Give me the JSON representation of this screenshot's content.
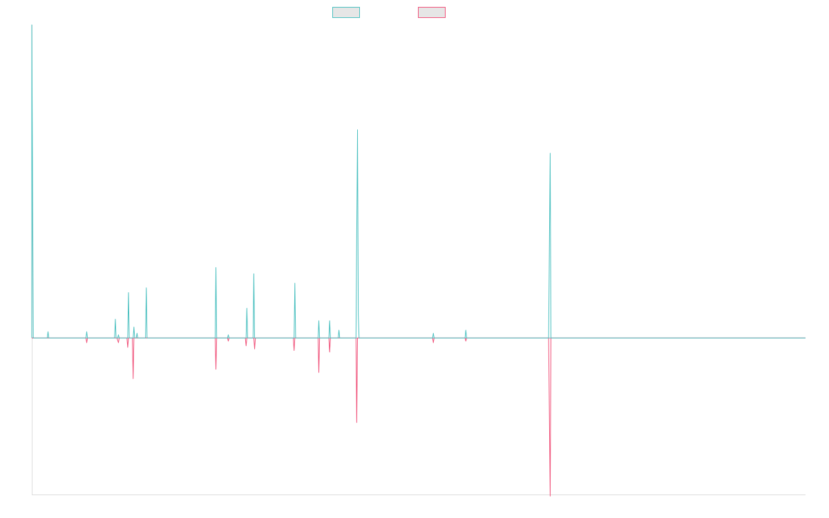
{
  "chart_data": {
    "type": "line",
    "title": "",
    "xlabel": "",
    "ylabel": "",
    "xlim": [
      0,
      1000
    ],
    "ylim": [
      -100,
      200
    ],
    "grid": false,
    "legend_position": "top-center",
    "series": [
      {
        "name": "",
        "color": "#4bc0c0",
        "points": [
          [
            0,
            0
          ],
          [
            0,
            200
          ],
          [
            2,
            0
          ],
          [
            20,
            0
          ],
          [
            21,
            4
          ],
          [
            22,
            0
          ],
          [
            70,
            0
          ],
          [
            71,
            4
          ],
          [
            72,
            0
          ],
          [
            107,
            0
          ],
          [
            108,
            12
          ],
          [
            109,
            0
          ],
          [
            111,
            0
          ],
          [
            112,
            2
          ],
          [
            113,
            0
          ],
          [
            124,
            0
          ],
          [
            125,
            29
          ],
          [
            126,
            0
          ],
          [
            131,
            0
          ],
          [
            132,
            7
          ],
          [
            133,
            0
          ],
          [
            135,
            0
          ],
          [
            136,
            3
          ],
          [
            137,
            0
          ],
          [
            147,
            0
          ],
          [
            148,
            32
          ],
          [
            149,
            0
          ],
          [
            237,
            0
          ],
          [
            238,
            45
          ],
          [
            239,
            0
          ],
          [
            253,
            0
          ],
          [
            254,
            2
          ],
          [
            255,
            0
          ],
          [
            277,
            0
          ],
          [
            278,
            19
          ],
          [
            279,
            0
          ],
          [
            286,
            0
          ],
          [
            287,
            41
          ],
          [
            288,
            0
          ],
          [
            339,
            0
          ],
          [
            340,
            35
          ],
          [
            341,
            0
          ],
          [
            370,
            0
          ],
          [
            371,
            11
          ],
          [
            372,
            0
          ],
          [
            375,
            0
          ],
          [
            376,
            0
          ],
          [
            377,
            0
          ],
          [
            384,
            0
          ],
          [
            385,
            11
          ],
          [
            386,
            0
          ],
          [
            396,
            0
          ],
          [
            397,
            5
          ],
          [
            398,
            0
          ],
          [
            419,
            0
          ],
          [
            421,
            133
          ],
          [
            422,
            15
          ],
          [
            423,
            0
          ],
          [
            518,
            0
          ],
          [
            519,
            3
          ],
          [
            520,
            0
          ],
          [
            560,
            0
          ],
          [
            561,
            5
          ],
          [
            562,
            0
          ],
          [
            668,
            0
          ],
          [
            670,
            118
          ],
          [
            671,
            0
          ],
          [
            1000,
            0
          ]
        ]
      },
      {
        "name": "",
        "color": "#f0527a",
        "points": [
          [
            0,
            0
          ],
          [
            70,
            0
          ],
          [
            71,
            -3
          ],
          [
            72,
            0
          ],
          [
            110,
            0
          ],
          [
            112,
            -3
          ],
          [
            113,
            0
          ],
          [
            123,
            0
          ],
          [
            124,
            -6
          ],
          [
            125,
            0
          ],
          [
            130,
            0
          ],
          [
            131,
            -26
          ],
          [
            132,
            0
          ],
          [
            156,
            0
          ],
          [
            237,
            0
          ],
          [
            238,
            -20
          ],
          [
            239,
            0
          ],
          [
            253,
            0
          ],
          [
            254,
            -2
          ],
          [
            255,
            0
          ],
          [
            276,
            0
          ],
          [
            277,
            -5
          ],
          [
            278,
            0
          ],
          [
            287,
            0
          ],
          [
            288,
            -7
          ],
          [
            289,
            0
          ],
          [
            338,
            0
          ],
          [
            339,
            -8
          ],
          [
            340,
            0
          ],
          [
            370,
            0
          ],
          [
            371,
            -22
          ],
          [
            372,
            0
          ],
          [
            384,
            0
          ],
          [
            385,
            -9
          ],
          [
            386,
            0
          ],
          [
            419,
            0
          ],
          [
            420,
            -54
          ],
          [
            421,
            0
          ],
          [
            518,
            0
          ],
          [
            519,
            -3
          ],
          [
            520,
            0
          ],
          [
            560,
            0
          ],
          [
            561,
            -2
          ],
          [
            562,
            0
          ],
          [
            668,
            0
          ],
          [
            670,
            -101
          ],
          [
            671,
            0
          ],
          [
            1000,
            0
          ]
        ]
      }
    ]
  }
}
